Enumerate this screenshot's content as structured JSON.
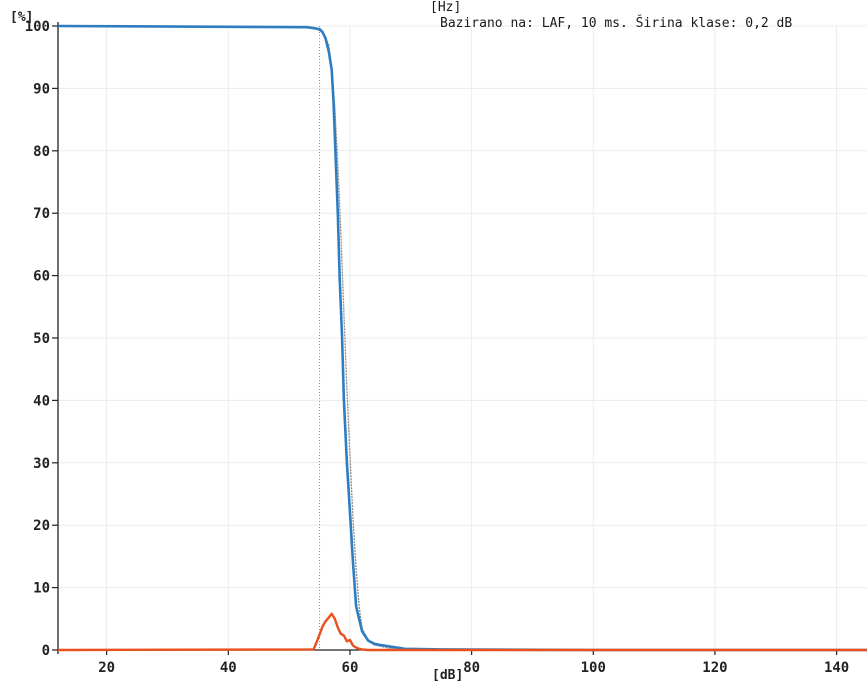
{
  "header": {
    "hz_unit": "[Hz]",
    "note": "Bazirano na: LAF, 10 ms. Širina klase: 0,2 dB"
  },
  "chart_data": {
    "type": "line",
    "ylabel": "[%]",
    "xlabel": "[dB]",
    "xlim": [
      12,
      145
    ],
    "ylim": [
      0,
      100
    ],
    "xticks": [
      20,
      40,
      60,
      80,
      100,
      120,
      140
    ],
    "yticks": [
      0,
      10,
      20,
      30,
      40,
      50,
      60,
      70,
      80,
      90,
      100
    ],
    "grid": true,
    "colors": {
      "cumulative": "#2f7cc2",
      "cumulative_ghost": "#8a8a8a",
      "distribution": "#e8501e",
      "marker": "#d060a0"
    },
    "series": [
      {
        "key": "cumulative",
        "x": [
          12,
          53,
          55,
          55.5,
          56,
          56.5,
          57,
          57.3,
          57.6,
          58,
          58.3,
          58.7,
          59,
          59.5,
          60,
          60.5,
          61,
          62,
          63,
          64,
          65,
          67,
          69,
          75,
          100,
          145
        ],
        "values": [
          100,
          99.8,
          99.5,
          99,
          98,
          96,
          93,
          88,
          80,
          70,
          60,
          50,
          40,
          30,
          22,
          14,
          7,
          3,
          1.5,
          1,
          0.8,
          0.5,
          0.2,
          0.1,
          0,
          0
        ]
      },
      {
        "key": "cumulative_ghost",
        "x": [
          12,
          54,
          55.5,
          56.5,
          57,
          57.5,
          58,
          58.5,
          59,
          59.5,
          60,
          60.5,
          61,
          61.5,
          62,
          63,
          64,
          67,
          72
        ],
        "values": [
          100,
          99.8,
          99,
          97,
          93,
          87,
          78,
          67,
          54,
          42,
          31,
          21,
          13,
          7,
          3.5,
          1.5,
          0.8,
          0.2,
          0
        ]
      },
      {
        "key": "distribution",
        "x": [
          12,
          54,
          54.5,
          55,
          55.5,
          56,
          56.5,
          57,
          57.5,
          58,
          58.5,
          59,
          59.5,
          60,
          60.5,
          61,
          61.5,
          62,
          63,
          145
        ],
        "values": [
          0,
          0.1,
          1.2,
          2.5,
          3.8,
          4.6,
          5.2,
          5.8,
          5.0,
          3.6,
          2.6,
          2.3,
          1.4,
          1.6,
          0.7,
          0.4,
          0.2,
          0.1,
          0,
          0
        ]
      }
    ],
    "marker_x": 55
  }
}
